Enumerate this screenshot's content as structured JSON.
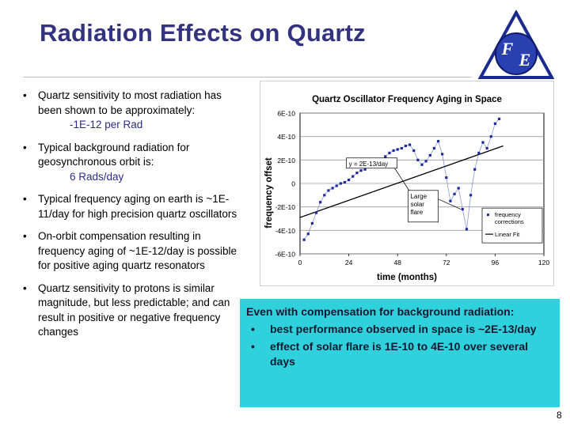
{
  "slide": {
    "title": "Radiation Effects on Quartz",
    "page_number": "8",
    "logo_text": "F E"
  },
  "bullets": [
    {
      "text": "Quartz sensitivity to most radiation has been shown to be approximately:",
      "sub": "-1E-12 per Rad"
    },
    {
      "text": "Typical background radiation for geosynchronous orbit is:",
      "sub": "6 Rads/day"
    },
    {
      "text": "Typical frequency aging on earth is ~1E-11/day for high precision quartz oscillators"
    },
    {
      "text": "On-orbit compensation resulting in frequency aging of ~1E-12/day is possible for positive aging quartz resonators"
    },
    {
      "text": "Quartz sensitivity to protons is similar magnitude, but less predictable; and can result in positive or negative frequency changes"
    }
  ],
  "callout": {
    "heading": "Even with compensation for background radiation:",
    "items": [
      "best performance observed in space is ~2E-13/day",
      "effect of solar flare is 1E-10 to 4E-10 over several days"
    ]
  },
  "chart_data": {
    "type": "scatter",
    "title": "Quartz Oscillator Frequency Aging in Space",
    "xlabel": "time (months)",
    "ylabel": "frequency offset",
    "xlim": [
      0,
      120
    ],
    "ylim": [
      -6e-10,
      6e-10
    ],
    "x_ticks": [
      "0",
      "24",
      "48",
      "72",
      "96",
      "120"
    ],
    "y_ticks": [
      "6E-10",
      "4E-10",
      "2E-10",
      "0",
      "-2E-10",
      "-4E-10",
      "-6E-10"
    ],
    "grid": true,
    "legend": [
      "frequency corrections",
      "Linear Fit"
    ],
    "legend_position": "bottom-right",
    "annotations": [
      {
        "text": "y = 2E-13/day",
        "x": 24,
        "y": 1.5e-10
      },
      {
        "text": "Large solar flare",
        "x": 80,
        "y": -1.2e-10
      }
    ],
    "series": [
      {
        "name": "frequency corrections",
        "x": [
          2,
          4,
          6,
          8,
          10,
          12,
          14,
          16,
          18,
          20,
          22,
          24,
          26,
          28,
          30,
          32,
          34,
          36,
          38,
          40,
          42,
          44,
          46,
          48,
          50,
          52,
          54,
          56,
          58,
          60,
          62,
          64,
          66,
          68,
          70,
          72,
          74,
          76,
          78,
          80,
          82,
          84,
          86,
          88,
          90,
          92,
          94,
          96,
          98
        ],
        "y": [
          -4.8e-10,
          -4.3e-10,
          -3.4e-10,
          -2.5e-10,
          -1.6e-10,
          -1e-10,
          -6e-11,
          -4e-11,
          -2e-11,
          0.0,
          1e-11,
          3e-11,
          6e-11,
          9e-11,
          1.1e-10,
          1.2e-10,
          1.4e-10,
          1.6e-10,
          1.8e-10,
          2e-10,
          2.3e-10,
          2.6e-10,
          2.8e-10,
          2.9e-10,
          3e-10,
          3.2e-10,
          3.3e-10,
          2.8e-10,
          2e-10,
          1.6e-10,
          1.9e-10,
          2.4e-10,
          3e-10,
          3.6e-10,
          2.5e-10,
          5e-11,
          -1.5e-10,
          -9e-11,
          -4e-11,
          -2.2e-10,
          -3.9e-10,
          -1e-10,
          1.2e-10,
          2.6e-10,
          3.5e-10,
          3e-10,
          4e-10,
          5.1e-10,
          5.5e-10
        ]
      },
      {
        "name": "Linear Fit",
        "x": [
          0,
          100
        ],
        "y": [
          -2.9e-10,
          3.2e-10
        ]
      }
    ]
  },
  "colors": {
    "title": "#33337f",
    "accent_sub": "#2b2b8f",
    "callout_bg": "#2fd2dc",
    "logo_blue": "#2a3fb0"
  }
}
